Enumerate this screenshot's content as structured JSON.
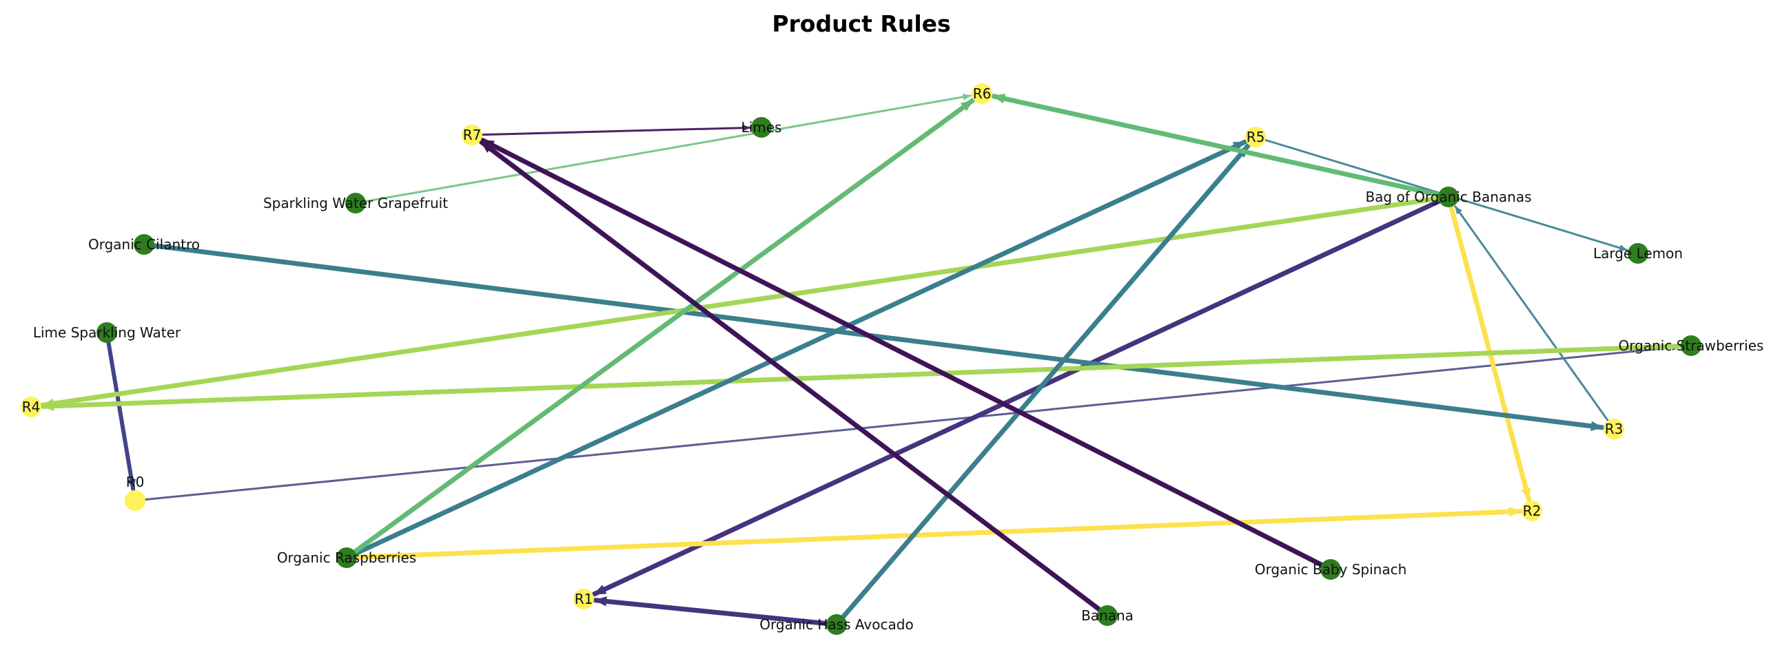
{
  "title": "Product Rules",
  "colors": {
    "product_node": "#2e7d1f",
    "rule_node": "#fff25a",
    "background": "#ffffff"
  },
  "nodes": [
    {
      "id": "R0",
      "label": "R0",
      "type": "rule"
    },
    {
      "id": "R1",
      "label": "R1",
      "type": "rule"
    },
    {
      "id": "R2",
      "label": "R2",
      "type": "rule"
    },
    {
      "id": "R3",
      "label": "R3",
      "type": "rule"
    },
    {
      "id": "R4",
      "label": "R4",
      "type": "rule"
    },
    {
      "id": "R5",
      "label": "R5",
      "type": "rule"
    },
    {
      "id": "R6",
      "label": "R6",
      "type": "rule"
    },
    {
      "id": "R7",
      "label": "R7",
      "type": "rule"
    },
    {
      "id": "limes",
      "label": "Limes",
      "type": "product"
    },
    {
      "id": "sparkling-water-grapefruit",
      "label": "Sparkling Water Grapefruit",
      "type": "product"
    },
    {
      "id": "organic-cilantro",
      "label": "Organic Cilantro",
      "type": "product"
    },
    {
      "id": "lime-sparkling-water",
      "label": "Lime Sparkling Water",
      "type": "product"
    },
    {
      "id": "organic-raspberries",
      "label": "Organic Raspberries",
      "type": "product"
    },
    {
      "id": "organic-hass-avocado",
      "label": "Organic Hass Avocado",
      "type": "product"
    },
    {
      "id": "banana",
      "label": "Banana",
      "type": "product"
    },
    {
      "id": "organic-baby-spinach",
      "label": "Organic Baby Spinach",
      "type": "product"
    },
    {
      "id": "bag-of-organic-bananas",
      "label": "Bag of Organic Bananas",
      "type": "product"
    },
    {
      "id": "large-lemon",
      "label": "Large Lemon",
      "type": "product"
    },
    {
      "id": "organic-strawberries",
      "label": "Organic Strawberries",
      "type": "product"
    }
  ],
  "edges": [
    {
      "from": "lime-sparkling-water",
      "to": "R0",
      "color": "#414487"
    },
    {
      "from": "R0",
      "to": "organic-strawberries",
      "color": "#5b5f94"
    },
    {
      "from": "bag-of-organic-bananas",
      "to": "R1",
      "color": "#46337e"
    },
    {
      "from": "organic-hass-avocado",
      "to": "R1",
      "color": "#46337e"
    },
    {
      "from": "organic-raspberries",
      "to": "R2",
      "color": "#fde14d"
    },
    {
      "from": "bag-of-organic-bananas",
      "to": "R2",
      "color": "#fde14d"
    },
    {
      "from": "organic-cilantro",
      "to": "R3",
      "color": "#3b7f8e"
    },
    {
      "from": "R3",
      "to": "bag-of-organic-bananas",
      "color": "#4a8a98"
    },
    {
      "from": "bag-of-organic-bananas",
      "to": "R4",
      "color": "#a5d656"
    },
    {
      "from": "organic-strawberries",
      "to": "R4",
      "color": "#a5d656"
    },
    {
      "from": "organic-raspberries",
      "to": "R5",
      "color": "#3b7f8e"
    },
    {
      "from": "organic-hass-avocado",
      "to": "R5",
      "color": "#3b7f8e"
    },
    {
      "from": "R5",
      "to": "large-lemon",
      "color": "#4a8a98"
    },
    {
      "from": "organic-raspberries",
      "to": "R6",
      "color": "#63ba74"
    },
    {
      "from": "bag-of-organic-bananas",
      "to": "R6",
      "color": "#63ba74"
    },
    {
      "from": "sparkling-water-grapefruit",
      "to": "R6",
      "color": "#7bc68a"
    },
    {
      "from": "banana",
      "to": "R7",
      "color": "#3f1457"
    },
    {
      "from": "organic-baby-spinach",
      "to": "R7",
      "color": "#3f1457"
    },
    {
      "from": "R7",
      "to": "limes",
      "color": "#4d2265"
    }
  ]
}
